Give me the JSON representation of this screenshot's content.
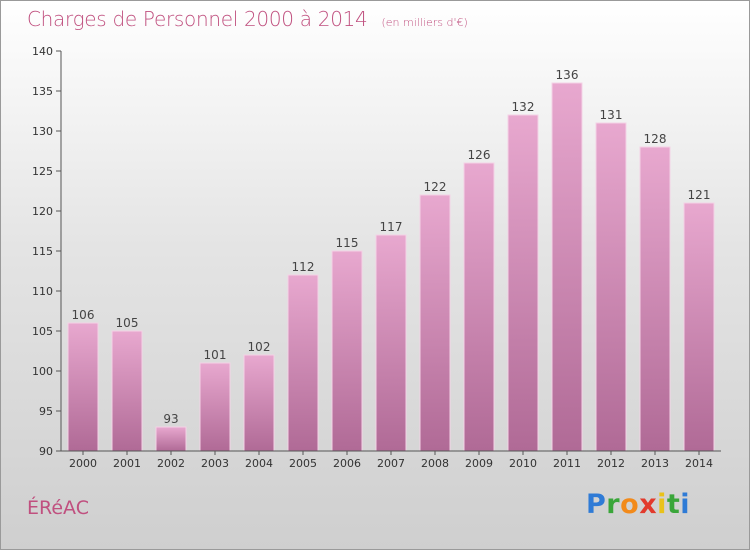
{
  "title": "Charges de Personnel 2000 à 2014",
  "subtitle": "(en milliers d'€)",
  "location": "ÉRéAC",
  "brand": {
    "letters": [
      "P",
      "r",
      "o",
      "x",
      "i",
      "t",
      "i"
    ],
    "colors": [
      "#2f7bd6",
      "#3aa63a",
      "#f28a1a",
      "#e23a2c",
      "#e9c21a",
      "#3aa63a",
      "#2f7bd6"
    ]
  },
  "colors": {
    "bar_top": "#e8a8cf",
    "bar_bottom": "#b06a96",
    "text": "#c0507f",
    "axis": "#555555"
  },
  "chart_data": {
    "type": "bar",
    "categories": [
      "2000",
      "2001",
      "2002",
      "2003",
      "2004",
      "2005",
      "2006",
      "2007",
      "2008",
      "2009",
      "2010",
      "2011",
      "2012",
      "2013",
      "2014"
    ],
    "values": [
      106,
      105,
      93,
      101,
      102,
      112,
      115,
      117,
      122,
      126,
      132,
      136,
      131,
      128,
      121
    ],
    "title": "Charges de Personnel 2000 à 2014",
    "xlabel": "",
    "ylabel": "",
    "ylim": [
      90,
      140
    ],
    "yticks": [
      90,
      95,
      100,
      105,
      110,
      115,
      120,
      125,
      130,
      135,
      140
    ],
    "grid": false,
    "legend": "none"
  }
}
